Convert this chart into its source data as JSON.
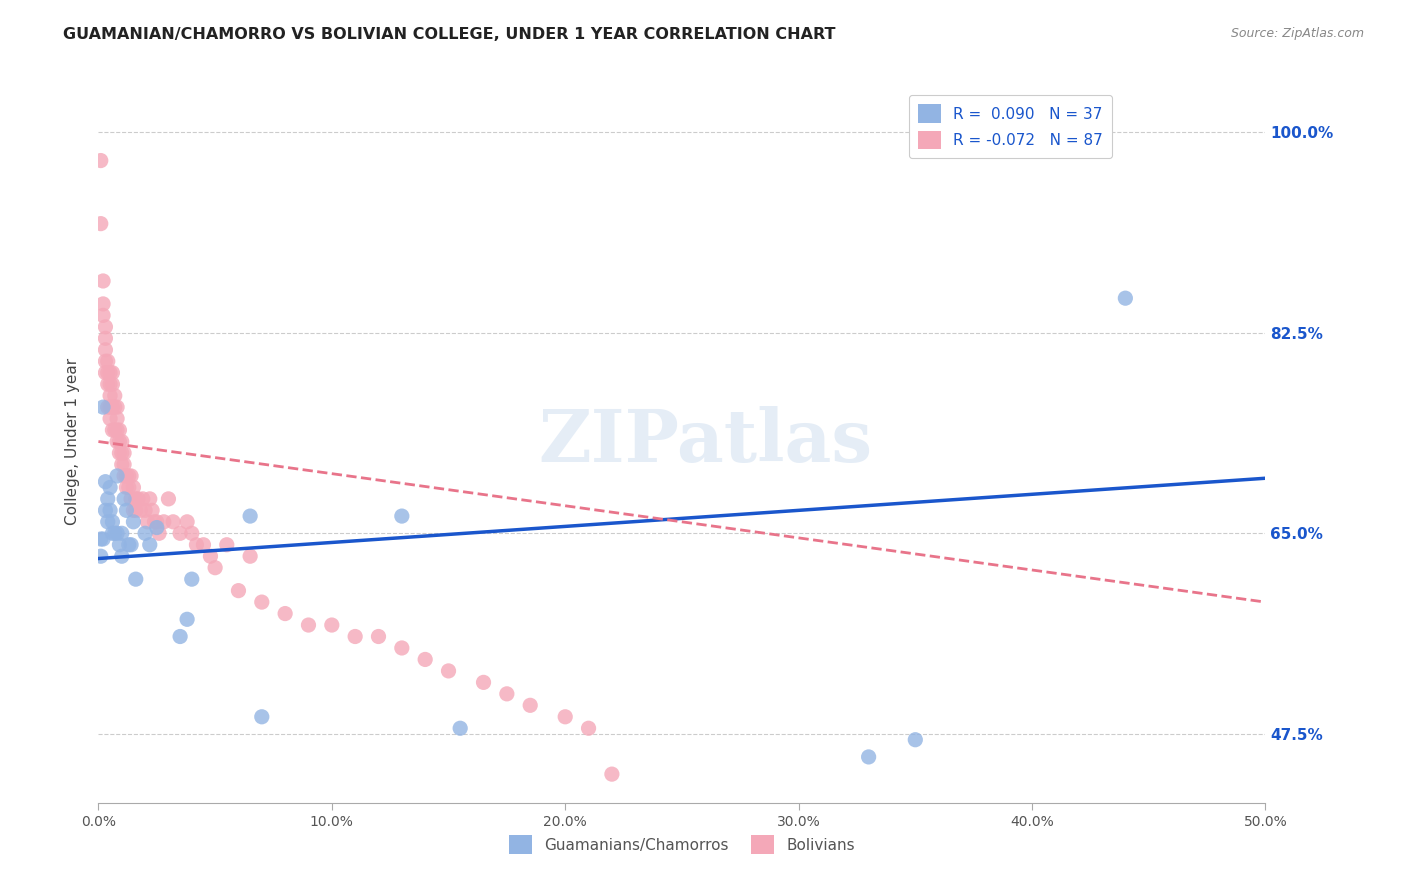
{
  "title": "GUAMANIAN/CHAMORRO VS BOLIVIAN COLLEGE, UNDER 1 YEAR CORRELATION CHART",
  "source": "Source: ZipAtlas.com",
  "ylabel": "College, Under 1 year",
  "x_tick_labels": [
    "0.0%",
    "10.0%",
    "20.0%",
    "30.0%",
    "40.0%",
    "50.0%"
  ],
  "y_tick_labels": [
    "47.5%",
    "65.0%",
    "82.5%",
    "100.0%"
  ],
  "xlim": [
    0.0,
    0.5
  ],
  "ylim": [
    0.415,
    1.045
  ],
  "legend_label1": "R =  0.090   N = 37",
  "legend_label2": "R = -0.072   N = 87",
  "legend_bottom_label1": "Guamanians/Chamorros",
  "legend_bottom_label2": "Bolivians",
  "color_blue": "#92b4e3",
  "color_pink": "#f4a8b8",
  "line_color_blue": "#1a56cc",
  "line_color_pink": "#e8748a",
  "watermark": "ZIPatlas",
  "guamanian_x": [
    0.001,
    0.001,
    0.002,
    0.002,
    0.003,
    0.003,
    0.004,
    0.004,
    0.005,
    0.005,
    0.006,
    0.006,
    0.007,
    0.008,
    0.008,
    0.009,
    0.01,
    0.01,
    0.011,
    0.012,
    0.013,
    0.014,
    0.015,
    0.016,
    0.02,
    0.022,
    0.025,
    0.035,
    0.038,
    0.04,
    0.065,
    0.07,
    0.13,
    0.155,
    0.33,
    0.44,
    0.35
  ],
  "guamanian_y": [
    0.645,
    0.63,
    0.76,
    0.645,
    0.695,
    0.67,
    0.68,
    0.66,
    0.69,
    0.67,
    0.65,
    0.66,
    0.65,
    0.7,
    0.65,
    0.64,
    0.65,
    0.63,
    0.68,
    0.67,
    0.64,
    0.64,
    0.66,
    0.61,
    0.65,
    0.64,
    0.655,
    0.56,
    0.575,
    0.61,
    0.665,
    0.49,
    0.665,
    0.48,
    0.455,
    0.855,
    0.47
  ],
  "bolivian_x": [
    0.001,
    0.001,
    0.002,
    0.002,
    0.002,
    0.003,
    0.003,
    0.003,
    0.003,
    0.003,
    0.004,
    0.004,
    0.004,
    0.004,
    0.005,
    0.005,
    0.005,
    0.005,
    0.005,
    0.006,
    0.006,
    0.006,
    0.006,
    0.007,
    0.007,
    0.007,
    0.008,
    0.008,
    0.008,
    0.008,
    0.009,
    0.009,
    0.009,
    0.01,
    0.01,
    0.01,
    0.011,
    0.011,
    0.011,
    0.012,
    0.012,
    0.013,
    0.013,
    0.014,
    0.014,
    0.015,
    0.015,
    0.016,
    0.016,
    0.017,
    0.018,
    0.019,
    0.02,
    0.021,
    0.022,
    0.023,
    0.024,
    0.025,
    0.026,
    0.028,
    0.03,
    0.032,
    0.035,
    0.038,
    0.04,
    0.042,
    0.045,
    0.048,
    0.05,
    0.055,
    0.06,
    0.065,
    0.07,
    0.08,
    0.09,
    0.1,
    0.11,
    0.12,
    0.13,
    0.14,
    0.15,
    0.165,
    0.175,
    0.185,
    0.2,
    0.21,
    0.22
  ],
  "bolivian_y": [
    0.975,
    0.92,
    0.87,
    0.85,
    0.84,
    0.83,
    0.82,
    0.81,
    0.8,
    0.79,
    0.8,
    0.79,
    0.78,
    0.76,
    0.79,
    0.78,
    0.77,
    0.76,
    0.75,
    0.79,
    0.78,
    0.76,
    0.74,
    0.77,
    0.76,
    0.74,
    0.76,
    0.75,
    0.74,
    0.73,
    0.74,
    0.73,
    0.72,
    0.73,
    0.72,
    0.71,
    0.72,
    0.7,
    0.71,
    0.7,
    0.69,
    0.7,
    0.69,
    0.68,
    0.7,
    0.69,
    0.67,
    0.68,
    0.67,
    0.68,
    0.67,
    0.68,
    0.67,
    0.66,
    0.68,
    0.67,
    0.66,
    0.66,
    0.65,
    0.66,
    0.68,
    0.66,
    0.65,
    0.66,
    0.65,
    0.64,
    0.64,
    0.63,
    0.62,
    0.64,
    0.6,
    0.63,
    0.59,
    0.58,
    0.57,
    0.57,
    0.56,
    0.56,
    0.55,
    0.54,
    0.53,
    0.52,
    0.51,
    0.5,
    0.49,
    0.48,
    0.44
  ],
  "blue_trend_x0": 0.0,
  "blue_trend_x1": 0.5,
  "blue_trend_y0": 0.628,
  "blue_trend_y1": 0.698,
  "pink_trend_x0": 0.0,
  "pink_trend_x1": 0.5,
  "pink_trend_y0": 0.73,
  "pink_trend_y1": 0.59
}
